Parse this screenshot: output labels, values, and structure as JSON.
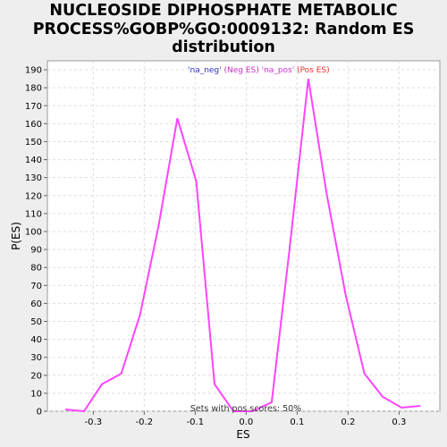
{
  "chart_data": {
    "type": "line",
    "title": "NUCLEOSIDE DIPHOSPHATE METABOLIC\nPROCESS%GOBP%GO:0009132: Random ES\ndistribution",
    "xlabel": "ES",
    "ylabel": "P(ES)",
    "xlim": [
      -0.39,
      0.38
    ],
    "ylim": [
      0,
      195
    ],
    "x_ticks": [
      "-0.3",
      "-0.2",
      "-0.1",
      "0.0",
      "0.1",
      "0.2",
      "0.3"
    ],
    "x_tick_values": [
      -0.3,
      -0.2,
      -0.1,
      0.0,
      0.1,
      0.2,
      0.3
    ],
    "y_ticks": [
      0,
      10,
      20,
      30,
      40,
      50,
      60,
      70,
      80,
      90,
      100,
      110,
      120,
      130,
      140,
      150,
      160,
      170,
      180,
      190
    ],
    "grid": true,
    "legend": [
      {
        "label": "'na_neg'",
        "color": "#3333cc"
      },
      {
        "label": "(Neg ES)",
        "color": "#cc33cc"
      },
      {
        "label": "'na_pos'",
        "color": "#cc33cc"
      },
      {
        "label": "(Pos ES)",
        "color": "#ee3333"
      }
    ],
    "annotation": "Sets with pos scores: 50%",
    "series": [
      {
        "color": "#ff44ff",
        "points": [
          [
            -0.355,
            1
          ],
          [
            -0.318,
            0
          ],
          [
            -0.283,
            15
          ],
          [
            -0.245,
            21
          ],
          [
            -0.208,
            54
          ],
          [
            -0.172,
            103
          ],
          [
            -0.135,
            163
          ],
          [
            -0.098,
            128
          ],
          [
            -0.062,
            15
          ],
          [
            -0.025,
            0
          ],
          [
            0.012,
            0
          ],
          [
            0.05,
            5
          ],
          [
            0.085,
            90
          ],
          [
            0.122,
            185
          ],
          [
            0.158,
            121
          ],
          [
            0.195,
            65
          ],
          [
            0.232,
            21
          ],
          [
            0.268,
            8
          ],
          [
            0.305,
            2
          ],
          [
            0.342,
            3
          ]
        ]
      }
    ]
  }
}
